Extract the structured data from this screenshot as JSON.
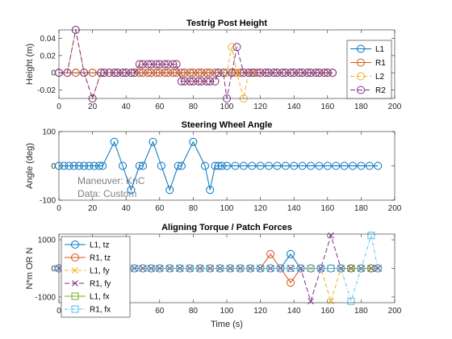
{
  "chart_data": [
    {
      "type": "line",
      "title": "Testrig Post Height",
      "xlabel": "",
      "ylabel": "Height (m)",
      "xlim": [
        0,
        200
      ],
      "ylim": [
        -0.03,
        0.05
      ],
      "xticks": [
        0,
        20,
        40,
        60,
        80,
        100,
        120,
        140,
        160,
        180,
        200
      ],
      "yticks": [
        -0.02,
        0,
        0.02,
        0.04
      ],
      "ytick_labels": [
        "-0.02",
        "0",
        "0.02",
        "0.04"
      ],
      "legend_position": "top-right",
      "series": [
        {
          "name": "L1",
          "color": "#0072BD",
          "dash": "",
          "marker": "circle",
          "x": [
            0,
            5,
            10,
            15,
            20,
            25,
            27,
            30,
            33,
            35,
            38,
            40,
            43,
            45,
            48,
            50,
            53,
            55,
            58,
            60,
            63,
            65,
            68,
            70,
            73,
            75,
            78,
            80,
            83,
            85,
            88,
            90,
            93,
            95,
            98,
            100,
            103,
            105,
            108,
            110,
            113,
            115,
            118,
            120,
            123,
            125,
            128,
            130,
            133,
            135,
            138,
            140,
            143,
            145,
            148,
            150,
            153,
            155,
            158,
            160,
            163
          ],
          "y": [
            0,
            0,
            0,
            0,
            0,
            0,
            0,
            0,
            0,
            0,
            0,
            0,
            0,
            0,
            0,
            0,
            0,
            0,
            0,
            0,
            0,
            0,
            0,
            0,
            0,
            0,
            0,
            0,
            0,
            0,
            0,
            0,
            0,
            0,
            0,
            0,
            0,
            0,
            0,
            0,
            0,
            0,
            0,
            0,
            0,
            0,
            0,
            0,
            0,
            0,
            0,
            0,
            0,
            0,
            0,
            0,
            0,
            0,
            0,
            0,
            0
          ]
        },
        {
          "name": "R1",
          "color": "#D95319",
          "dash": "",
          "marker": "circle",
          "x": [
            0,
            5,
            10,
            15,
            20,
            25,
            27,
            30,
            33,
            35,
            38,
            40,
            43,
            45,
            48,
            50,
            53,
            55,
            58,
            60,
            63,
            65,
            68,
            70,
            73,
            75,
            78,
            80,
            83,
            85,
            88,
            90,
            93,
            95,
            98,
            100,
            103,
            105,
            108,
            110,
            113,
            115,
            118,
            120,
            123,
            125,
            128,
            130,
            133,
            135,
            138,
            140,
            143,
            145,
            148,
            150,
            153,
            155,
            158,
            160,
            163
          ],
          "y": [
            0,
            0,
            0,
            0,
            0,
            0,
            0,
            0,
            0,
            0,
            0,
            0,
            0,
            0,
            0,
            0,
            0,
            0,
            0,
            0,
            0,
            0,
            0,
            0,
            0,
            0,
            0,
            0,
            0,
            0,
            0,
            0,
            0,
            0,
            0,
            0,
            0,
            0,
            0,
            0,
            0,
            0,
            0,
            0,
            0,
            0,
            0,
            0,
            0,
            0,
            0,
            0,
            0,
            0,
            0,
            0,
            0,
            0,
            0,
            0,
            0
          ]
        },
        {
          "name": "L2",
          "color": "#EDB120",
          "dash": "5,3",
          "marker": "circle",
          "x": [
            0,
            5,
            10,
            15,
            20,
            25,
            27,
            30,
            33,
            35,
            38,
            40,
            43,
            45,
            48,
            50,
            53,
            55,
            58,
            60,
            63,
            65,
            68,
            70,
            73,
            75,
            78,
            80,
            83,
            85,
            88,
            90,
            93,
            95,
            98,
            100,
            103,
            106,
            110,
            113,
            116,
            120,
            123,
            125,
            128,
            130,
            133,
            135,
            138,
            140,
            143,
            145,
            148,
            150,
            153,
            155,
            158,
            160,
            163
          ],
          "y": [
            0,
            0,
            0.05,
            0,
            -0.03,
            0,
            0,
            0,
            0,
            0,
            0,
            0,
            0,
            0,
            0.01,
            0.01,
            0.01,
            0.01,
            0.01,
            0.01,
            0.01,
            0.01,
            0.01,
            0.01,
            -0.01,
            -0.01,
            -0.01,
            -0.01,
            -0.01,
            -0.01,
            -0.01,
            -0.01,
            -0.01,
            0,
            0,
            0,
            0.03,
            0,
            -0.03,
            0,
            0,
            0,
            0,
            0,
            0,
            0,
            0,
            0,
            0,
            0,
            0,
            0,
            0,
            0,
            0,
            0,
            0,
            0,
            0
          ]
        },
        {
          "name": "R2",
          "color": "#7E2F8E",
          "dash": "6,3",
          "marker": "circle",
          "x": [
            0,
            5,
            10,
            15,
            20,
            25,
            27,
            30,
            33,
            35,
            38,
            40,
            43,
            45,
            48,
            50,
            53,
            55,
            58,
            60,
            63,
            65,
            68,
            70,
            73,
            75,
            78,
            80,
            83,
            85,
            88,
            90,
            93,
            95,
            98,
            100,
            103,
            106,
            110,
            113,
            116,
            120,
            123,
            125,
            128,
            130,
            133,
            135,
            138,
            140,
            143,
            145,
            148,
            150,
            153,
            155,
            158,
            160,
            163
          ],
          "y": [
            0,
            0,
            0.05,
            0,
            -0.03,
            0,
            0,
            0,
            0,
            0,
            0,
            0,
            0,
            0,
            0.01,
            0.01,
            0.01,
            0.01,
            0.01,
            0.01,
            0.01,
            0.01,
            0.01,
            0.01,
            -0.01,
            -0.01,
            -0.01,
            -0.01,
            -0.01,
            -0.01,
            -0.01,
            -0.01,
            -0.01,
            0,
            0,
            -0.03,
            0,
            0.03,
            0,
            0,
            0,
            0,
            0,
            0,
            0,
            0,
            0,
            0,
            0,
            0,
            0,
            0,
            0,
            0,
            0,
            0,
            0,
            0,
            0
          ]
        }
      ]
    },
    {
      "type": "line",
      "title": "Steering Wheel Angle",
      "xlabel": "",
      "ylabel": "Angle (deg)",
      "xlim": [
        0,
        200
      ],
      "ylim": [
        -100,
        100
      ],
      "xticks": [
        0,
        20,
        40,
        60,
        80,
        100,
        120,
        140,
        160,
        180,
        200
      ],
      "yticks": [
        -100,
        0,
        100
      ],
      "ytick_labels": [
        "-100",
        "0",
        "100"
      ],
      "annotations": [
        "Maneuver: KnC",
        "Data: Custom"
      ],
      "series": [
        {
          "name": "",
          "color": "#0072BD",
          "dash": "",
          "marker": "circle",
          "x": [
            0,
            3,
            6,
            9,
            12,
            15,
            18,
            21,
            24,
            26,
            33,
            38,
            43,
            48,
            50,
            56,
            61,
            66,
            71,
            73,
            80,
            87,
            90,
            93,
            95,
            97,
            100,
            105,
            110,
            115,
            120,
            125,
            130,
            135,
            140,
            145,
            150,
            155,
            160,
            165,
            170,
            175,
            180,
            185,
            190
          ],
          "y": [
            0,
            0,
            0,
            0,
            0,
            0,
            0,
            0,
            0,
            0,
            70,
            0,
            -70,
            0,
            0,
            70,
            0,
            -70,
            0,
            0,
            70,
            0,
            -70,
            0,
            0,
            0,
            0,
            0,
            0,
            0,
            0,
            0,
            0,
            0,
            0,
            0,
            0,
            0,
            0,
            0,
            0,
            0,
            0,
            0,
            0
          ]
        }
      ]
    },
    {
      "type": "line",
      "title": "Aligning Torque / Patch Forces",
      "xlabel": "Time (s)",
      "ylabel": "N*m OR N",
      "xlim": [
        0,
        200
      ],
      "ylim": [
        -1200,
        1200
      ],
      "xticks": [
        0,
        20,
        40,
        60,
        80,
        100,
        120,
        140,
        160,
        180,
        200
      ],
      "yticks": [
        -1000,
        0,
        1000
      ],
      "ytick_labels": [
        "-1000",
        "0",
        "1000"
      ],
      "legend_position": "top-left",
      "series": [
        {
          "name": "L1, tz",
          "color": "#0072BD",
          "dash": "",
          "marker": "circle",
          "x": [
            0,
            10,
            20,
            30,
            40,
            45,
            50,
            55,
            60,
            66,
            72,
            78,
            84,
            90,
            96,
            102,
            108,
            114,
            120,
            126,
            132,
            138,
            144,
            150,
            156,
            162,
            168,
            174,
            180,
            186,
            190
          ],
          "y": [
            0,
            0,
            0,
            0,
            0,
            0,
            0,
            0,
            0,
            0,
            0,
            0,
            0,
            0,
            0,
            0,
            0,
            0,
            0,
            0,
            0,
            500,
            0,
            0,
            0,
            0,
            0,
            0,
            0,
            0,
            0
          ]
        },
        {
          "name": "R1, tz",
          "color": "#D95319",
          "dash": "",
          "marker": "circle",
          "x": [
            0,
            10,
            20,
            30,
            40,
            45,
            50,
            55,
            60,
            66,
            72,
            78,
            84,
            90,
            96,
            102,
            108,
            114,
            120,
            126,
            132,
            138,
            144,
            150,
            156,
            162,
            168,
            174,
            180,
            186,
            190
          ],
          "y": [
            0,
            0,
            0,
            0,
            0,
            0,
            0,
            0,
            0,
            0,
            0,
            0,
            0,
            0,
            0,
            0,
            0,
            0,
            0,
            500,
            0,
            -500,
            0,
            0,
            0,
            0,
            0,
            0,
            0,
            0,
            0
          ]
        },
        {
          "name": "L1, fy",
          "color": "#EDB120",
          "dash": "5,3",
          "marker": "x",
          "x": [
            0,
            10,
            20,
            30,
            40,
            45,
            50,
            55,
            60,
            66,
            72,
            78,
            84,
            90,
            96,
            102,
            108,
            114,
            120,
            126,
            132,
            138,
            144,
            150,
            156,
            162,
            168,
            174,
            180,
            186,
            190
          ],
          "y": [
            0,
            0,
            0,
            0,
            0,
            0,
            0,
            0,
            0,
            0,
            0,
            0,
            0,
            0,
            0,
            0,
            0,
            0,
            0,
            0,
            0,
            0,
            0,
            0,
            0,
            -1150,
            0,
            0,
            0,
            0,
            0
          ]
        },
        {
          "name": "R1, fy",
          "color": "#7E2F8E",
          "dash": "6,3",
          "marker": "x",
          "x": [
            0,
            10,
            20,
            30,
            40,
            45,
            50,
            55,
            60,
            66,
            72,
            78,
            84,
            90,
            96,
            102,
            108,
            114,
            120,
            126,
            132,
            138,
            144,
            150,
            156,
            162,
            168,
            174,
            180,
            186,
            190
          ],
          "y": [
            0,
            0,
            0,
            0,
            0,
            0,
            0,
            0,
            0,
            0,
            0,
            0,
            0,
            0,
            0,
            0,
            0,
            0,
            0,
            0,
            0,
            0,
            0,
            -1150,
            0,
            1150,
            0,
            0,
            0,
            0,
            0
          ]
        },
        {
          "name": "L1, fx",
          "color": "#77AC30",
          "dash": "",
          "marker": "square",
          "x": [
            0,
            10,
            20,
            30,
            40,
            45,
            50,
            55,
            60,
            66,
            72,
            78,
            84,
            90,
            96,
            102,
            108,
            114,
            120,
            126,
            132,
            138,
            144,
            150,
            156,
            162,
            168,
            174,
            180,
            186,
            190
          ],
          "y": [
            0,
            0,
            0,
            0,
            0,
            0,
            0,
            0,
            0,
            0,
            0,
            0,
            0,
            0,
            0,
            0,
            0,
            0,
            0,
            0,
            0,
            0,
            0,
            0,
            0,
            0,
            0,
            0,
            0,
            0,
            0
          ]
        },
        {
          "name": "R1, fx",
          "color": "#4DBEEE",
          "dash": "4,2,1,2",
          "marker": "square",
          "x": [
            0,
            10,
            20,
            30,
            40,
            45,
            50,
            55,
            60,
            66,
            72,
            78,
            84,
            90,
            96,
            102,
            108,
            114,
            120,
            126,
            132,
            138,
            144,
            150,
            156,
            162,
            168,
            174,
            180,
            186,
            190
          ],
          "y": [
            0,
            0,
            0,
            0,
            0,
            0,
            0,
            0,
            0,
            0,
            0,
            0,
            0,
            0,
            0,
            0,
            0,
            0,
            0,
            0,
            0,
            0,
            0,
            0,
            0,
            0,
            0,
            -1150,
            0,
            1150,
            0
          ]
        }
      ]
    }
  ]
}
